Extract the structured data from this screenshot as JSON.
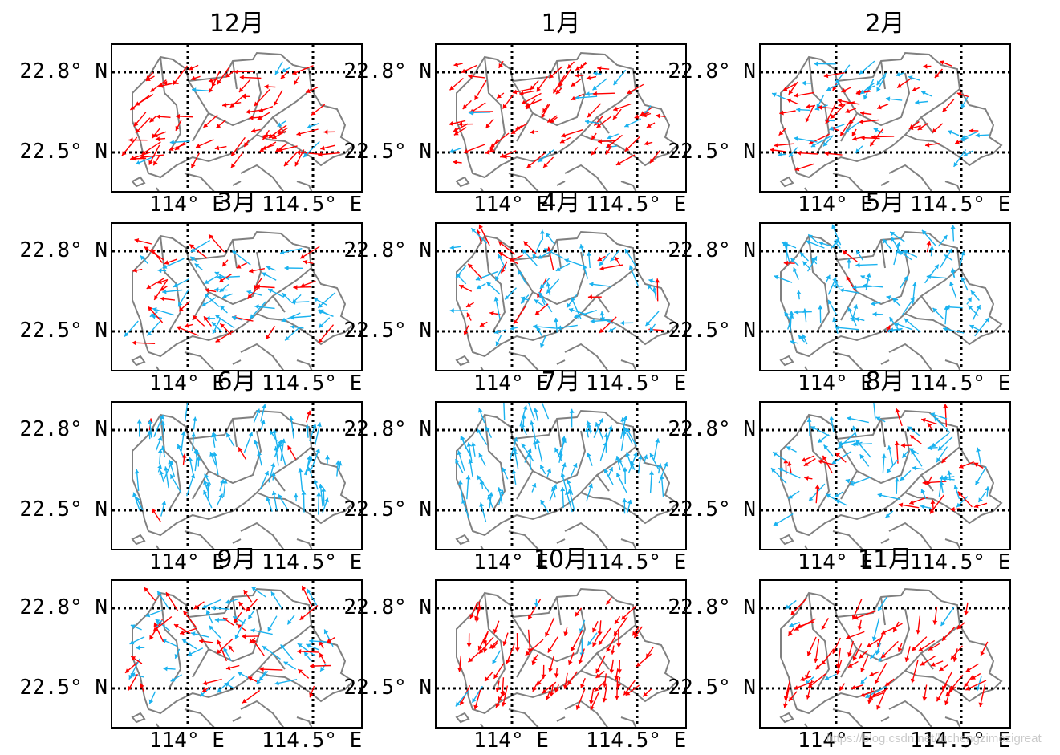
{
  "figure": {
    "watermark": "https://blog.csdn.net/luchengzimozigreat",
    "colors": {
      "positive": "#ff0000",
      "negative": "#1ab2ef",
      "coastline": "#808080",
      "grid": "#000000"
    }
  },
  "chart_data": {
    "type": "quiver-map-grid",
    "title": "",
    "layout": {
      "rows": 4,
      "cols": 3
    },
    "xticks": [
      "114° E",
      "114.5° E"
    ],
    "yticks": [
      "22.8° N",
      "22.5° N"
    ],
    "grid": "dotted",
    "legend": "red arrows / blue arrows (two vector classes)",
    "panels": [
      {
        "title": "12月",
        "red_ratio": 0.88,
        "dir_deg": 210,
        "spread": 35
      },
      {
        "title": "1月",
        "red_ratio": 0.85,
        "dir_deg": 205,
        "spread": 35
      },
      {
        "title": "2月",
        "red_ratio": 0.55,
        "dir_deg": 200,
        "spread": 45
      },
      {
        "title": "3月",
        "red_ratio": 0.4,
        "dir_deg": 185,
        "spread": 60
      },
      {
        "title": "4月",
        "red_ratio": 0.3,
        "dir_deg": 170,
        "spread": 80
      },
      {
        "title": "5月",
        "red_ratio": 0.08,
        "dir_deg": 120,
        "spread": 70
      },
      {
        "title": "6月",
        "red_ratio": 0.07,
        "dir_deg": 95,
        "spread": 30
      },
      {
        "title": "7月",
        "red_ratio": 0.03,
        "dir_deg": 95,
        "spread": 30
      },
      {
        "title": "8月",
        "red_ratio": 0.4,
        "dir_deg": 160,
        "spread": 80
      },
      {
        "title": "9月",
        "red_ratio": 0.45,
        "dir_deg": 180,
        "spread": 70
      },
      {
        "title": "10月",
        "red_ratio": 0.9,
        "dir_deg": 245,
        "spread": 30
      },
      {
        "title": "11月",
        "red_ratio": 0.85,
        "dir_deg": 230,
        "spread": 35
      }
    ]
  }
}
